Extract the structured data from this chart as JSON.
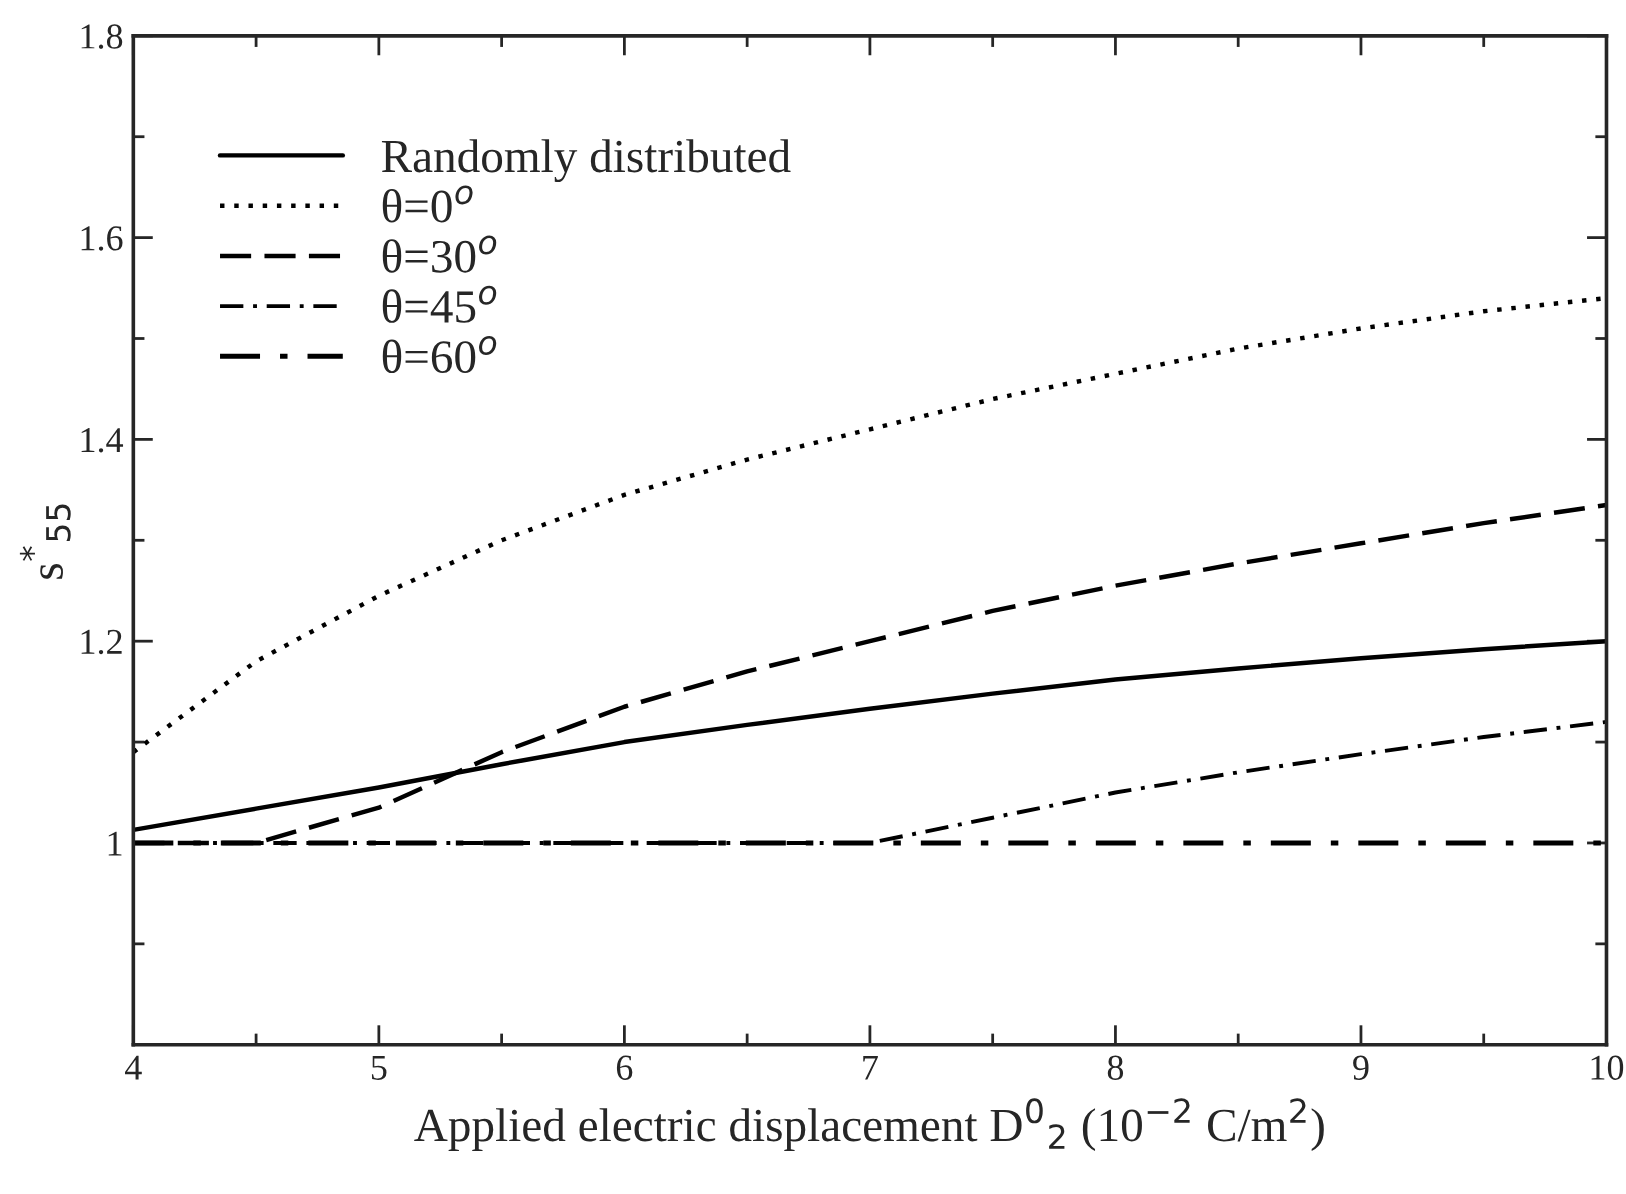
{
  "chart_data": {
    "type": "line",
    "xlabel": "Applied electric displacement D$^{0}$$_{2}$ (10$^{−2}$ C/m$^{2}$)",
    "ylabel": "s$^{*}$$_{55}$",
    "x": [
      4,
      4.5,
      5,
      5.5,
      6,
      6.5,
      7,
      7.5,
      8,
      8.5,
      9,
      9.5,
      10
    ],
    "series": [
      {
        "name": "Randomly distributed",
        "color": "#000000",
        "line_style": "solid",
        "values": [
          1.013,
          1.034,
          1.055,
          1.078,
          1.1,
          1.117,
          1.133,
          1.148,
          1.162,
          1.173,
          1.183,
          1.192,
          1.2
        ]
      },
      {
        "name": "θ=0$^{o}$",
        "color": "#000000",
        "line_style": "dotted",
        "values": [
          1.09,
          1.18,
          1.245,
          1.3,
          1.345,
          1.38,
          1.41,
          1.44,
          1.465,
          1.49,
          1.51,
          1.527,
          1.54
        ]
      },
      {
        "name": "θ=30$^{o}$",
        "color": "#000000",
        "line_style": "dashed",
        "values": [
          1.0,
          1.0,
          1.035,
          1.09,
          1.135,
          1.17,
          1.2,
          1.23,
          1.255,
          1.277,
          1.297,
          1.317,
          1.335
        ]
      },
      {
        "name": "θ=45$^{o}$",
        "color": "#000000",
        "line_style": "dashdot",
        "values": [
          1.0,
          1.0,
          1.0,
          1.0,
          1.0,
          1.0,
          1.0,
          1.025,
          1.05,
          1.07,
          1.088,
          1.105,
          1.12
        ]
      },
      {
        "name": "θ=60$^{o}$",
        "color": "#000000",
        "line_style": "longdashdot",
        "values": [
          1.0,
          1.0,
          1.0,
          1.0,
          1.0,
          1.0,
          1.0,
          1.0,
          1.0,
          1.0,
          1.0,
          1.0,
          1.0
        ]
      }
    ],
    "xlim": [
      4,
      10
    ],
    "xticks": [
      4,
      {
        "value": 4.5,
        "label": null
      },
      5,
      {
        "value": 5.5,
        "label": null
      },
      6,
      {
        "value": 6.5,
        "label": null
      },
      7,
      {
        "value": 7.5,
        "label": null
      },
      8,
      {
        "value": 8.5,
        "label": null
      },
      9,
      {
        "value": 9.5,
        "label": null
      },
      10
    ],
    "ylim": [
      0.8,
      1.8
    ],
    "yticks": [
      {
        "value": 0.9,
        "label": null
      },
      1,
      {
        "value": 1.1,
        "label": null
      },
      1.2,
      {
        "value": 1.3,
        "label": null
      },
      1.4,
      {
        "value": 1.5,
        "label": null
      },
      1.6,
      {
        "value": 1.7,
        "label": null
      },
      1.8
    ],
    "legend": "top left",
    "grid": false
  }
}
